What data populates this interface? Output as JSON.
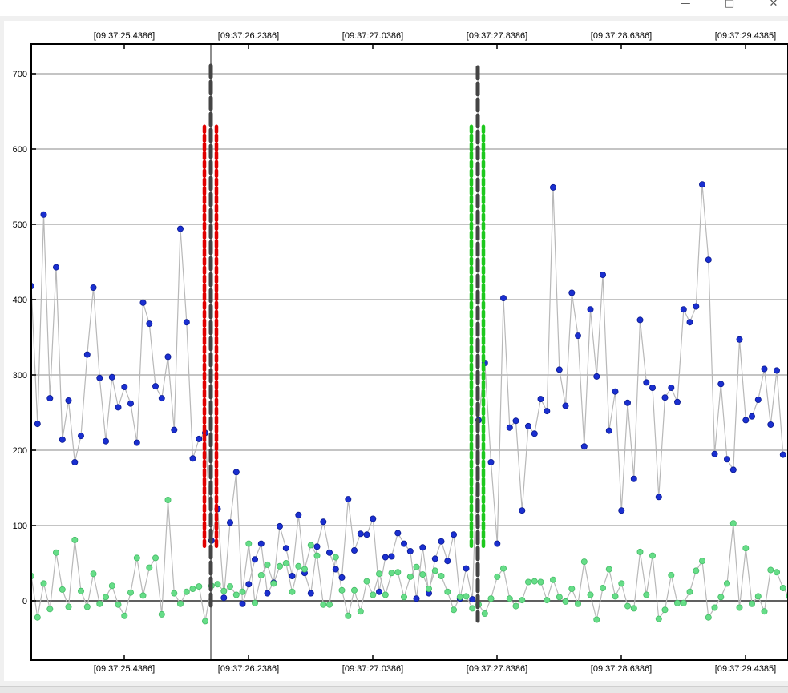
{
  "window": {
    "minimize_icon": "minimize-icon",
    "maximize_icon": "maximize-icon",
    "close_icon": "close-icon"
  },
  "chart_data": {
    "type": "scatter",
    "title": "",
    "xlabel": "",
    "ylabel": "",
    "ylim": [
      -80,
      740
    ],
    "yticks": [
      0,
      100,
      200,
      300,
      400,
      500,
      600,
      700
    ],
    "x_tick_labels": [
      "[09:37:25.4386]",
      "[09:37:26.2386]",
      "[09:37:27.0386]",
      "[09:37:27.8386]",
      "[09:37:28.6386]",
      "[09:37:29.4385]"
    ],
    "grid": "horizontal",
    "colors": {
      "series_blue": "#1a2fd0",
      "series_green": "#66dd88",
      "connector": "#b8b8b8",
      "grid": "#c4c4c4",
      "zero_line": "#606060",
      "marker_red": "#e00000",
      "marker_green": "#1ec81e",
      "marker_dark": "#444444"
    },
    "markers": [
      {
        "name": "cursor-start",
        "tick_index": 1,
        "color": "red",
        "range": [
          70,
          630
        ]
      },
      {
        "name": "cursor-end",
        "tick_index": 3,
        "color": "green",
        "range": [
          70,
          630
        ]
      }
    ],
    "series": [
      {
        "values": [
          418,
          235,
          513,
          269,
          443,
          214,
          266,
          184,
          219,
          327,
          416,
          296,
          212,
          297,
          257,
          284,
          262,
          210,
          396,
          368,
          285,
          269,
          324,
          227,
          494,
          370,
          189,
          215,
          223,
          80,
          122,
          4,
          104,
          171,
          -4,
          22,
          55,
          76,
          10,
          24,
          99,
          70,
          33,
          114,
          37,
          10,
          72,
          105,
          64,
          42,
          31,
          135,
          67,
          89,
          88,
          109,
          12,
          58,
          59,
          90,
          76,
          66,
          3,
          71,
          10,
          56,
          79,
          53,
          88,
          3,
          43,
          2,
          240,
          316,
          184,
          76,
          402,
          230,
          239,
          120,
          232,
          222,
          268,
          252,
          549,
          307,
          259,
          409,
          352,
          205,
          387,
          298,
          433,
          226,
          278,
          120,
          263,
          162,
          373,
          290,
          283,
          138,
          270,
          283,
          264,
          387,
          370,
          391,
          553,
          453,
          195,
          288,
          188,
          174,
          347,
          240,
          245,
          267,
          308,
          234,
          306,
          194
        ]
      },
      {
        "values": [
          33,
          -22,
          23,
          -11,
          64,
          15,
          -8,
          81,
          13,
          -8,
          36,
          -4,
          5,
          20,
          -5,
          -20,
          11,
          57,
          7,
          44,
          57,
          -18,
          134,
          10,
          -4,
          12,
          16,
          19,
          -27,
          20,
          22,
          13,
          19,
          8,
          12,
          76,
          -3,
          34,
          48,
          23,
          46,
          50,
          12,
          46,
          42,
          74,
          60,
          -5,
          -5,
          58,
          14,
          -20,
          14,
          -14,
          26,
          8,
          36,
          8,
          37,
          38,
          5,
          32,
          45,
          35,
          16,
          40,
          33,
          12,
          -12,
          5,
          6,
          -10,
          -5,
          -17,
          3,
          32,
          43,
          3,
          -7,
          1,
          25,
          26,
          25,
          1,
          28,
          5,
          -1,
          16,
          -4,
          52,
          8,
          -25,
          17,
          42,
          6,
          23,
          -7,
          -10,
          65,
          8,
          60,
          -24,
          -12,
          34,
          -3,
          -3,
          12,
          40,
          53,
          -22,
          -9,
          5,
          23,
          103,
          -9,
          70,
          -4,
          6,
          -14,
          41,
          38,
          17,
          6
        ]
      }
    ]
  }
}
